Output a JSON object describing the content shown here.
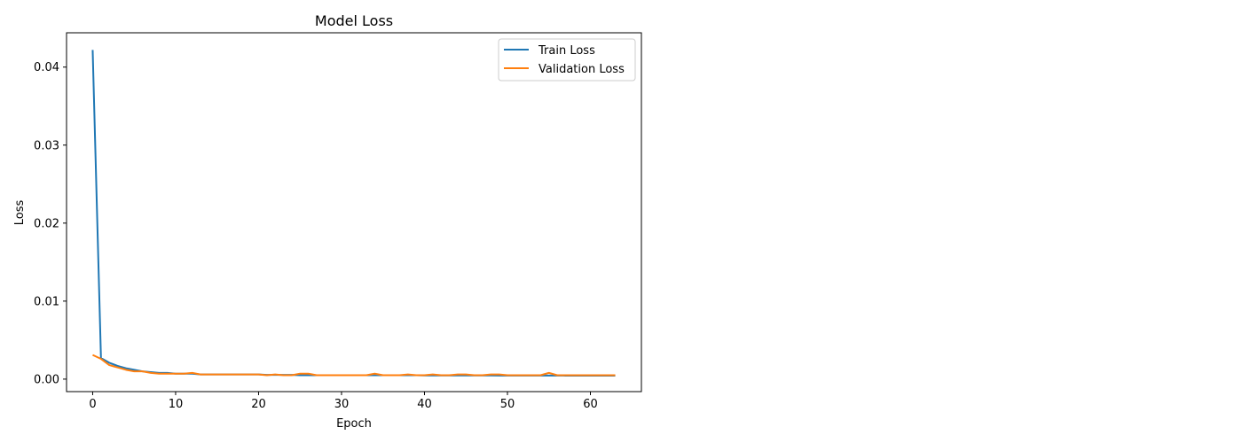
{
  "chart_data": {
    "type": "line",
    "title": "Model Loss",
    "xlabel": "Epoch",
    "ylabel": "Loss",
    "xlim": [
      -3.15,
      66.15
    ],
    "ylim": [
      -0.0016,
      0.0444
    ],
    "xticks": [
      0,
      10,
      20,
      30,
      40,
      50,
      60
    ],
    "yticks": [
      0.0,
      0.01,
      0.02,
      0.03,
      0.04
    ],
    "ytick_labels": [
      "0.00",
      "0.01",
      "0.02",
      "0.03",
      "0.04"
    ],
    "grid": false,
    "legend_position": "top-right",
    "series": [
      {
        "name": "Train Loss",
        "color": "#1f77b4",
        "x": [
          0,
          1,
          2,
          3,
          4,
          5,
          6,
          7,
          8,
          9,
          10,
          11,
          12,
          13,
          14,
          15,
          16,
          17,
          18,
          19,
          20,
          21,
          22,
          23,
          24,
          25,
          26,
          27,
          28,
          29,
          30,
          31,
          32,
          33,
          34,
          35,
          36,
          37,
          38,
          39,
          40,
          41,
          42,
          43,
          44,
          45,
          46,
          47,
          48,
          49,
          50,
          51,
          52,
          53,
          54,
          55,
          56,
          57,
          58,
          59,
          60,
          61,
          62,
          63
        ],
        "values": [
          0.0422,
          0.0027,
          0.0021,
          0.0017,
          0.0014,
          0.0012,
          0.001,
          0.0009,
          0.0008,
          0.0008,
          0.0007,
          0.0007,
          0.0007,
          0.0006,
          0.0006,
          0.0006,
          0.0006,
          0.0006,
          0.0006,
          0.0006,
          0.0006,
          0.00055,
          0.00055,
          0.00055,
          0.00055,
          0.0005,
          0.0005,
          0.0005,
          0.0005,
          0.0005,
          0.0005,
          0.0005,
          0.0005,
          0.0005,
          0.0005,
          0.0005,
          0.0005,
          0.0005,
          0.0005,
          0.0005,
          0.00048,
          0.00048,
          0.00048,
          0.00048,
          0.00048,
          0.00048,
          0.00048,
          0.00048,
          0.00048,
          0.00046,
          0.00046,
          0.00046,
          0.00046,
          0.00046,
          0.00046,
          0.00046,
          0.00046,
          0.00045,
          0.00045,
          0.00045,
          0.00045,
          0.00045,
          0.00045,
          0.00045
        ]
      },
      {
        "name": "Validation Loss",
        "color": "#ff7f0e",
        "x": [
          0,
          1,
          2,
          3,
          4,
          5,
          6,
          7,
          8,
          9,
          10,
          11,
          12,
          13,
          14,
          15,
          16,
          17,
          18,
          19,
          20,
          21,
          22,
          23,
          24,
          25,
          26,
          27,
          28,
          29,
          30,
          31,
          32,
          33,
          34,
          35,
          36,
          37,
          38,
          39,
          40,
          41,
          42,
          43,
          44,
          45,
          46,
          47,
          48,
          49,
          50,
          51,
          52,
          53,
          54,
          55,
          56,
          57,
          58,
          59,
          60,
          61,
          62,
          63
        ],
        "values": [
          0.0031,
          0.0026,
          0.0018,
          0.0015,
          0.0012,
          0.001,
          0.001,
          0.0008,
          0.0007,
          0.0007,
          0.0007,
          0.0007,
          0.0008,
          0.0006,
          0.0006,
          0.0006,
          0.0006,
          0.0006,
          0.0006,
          0.0006,
          0.0006,
          0.0005,
          0.0006,
          0.0005,
          0.0005,
          0.0007,
          0.0007,
          0.0005,
          0.0005,
          0.0005,
          0.0005,
          0.0005,
          0.0005,
          0.0005,
          0.0007,
          0.0005,
          0.0005,
          0.0005,
          0.0006,
          0.0005,
          0.0005,
          0.0006,
          0.0005,
          0.0005,
          0.0006,
          0.0006,
          0.0005,
          0.0005,
          0.0006,
          0.0006,
          0.0005,
          0.0005,
          0.0005,
          0.0005,
          0.0005,
          0.0008,
          0.0005,
          0.0005,
          0.0005,
          0.0005,
          0.0005,
          0.0005,
          0.0005,
          0.0005
        ]
      }
    ]
  }
}
